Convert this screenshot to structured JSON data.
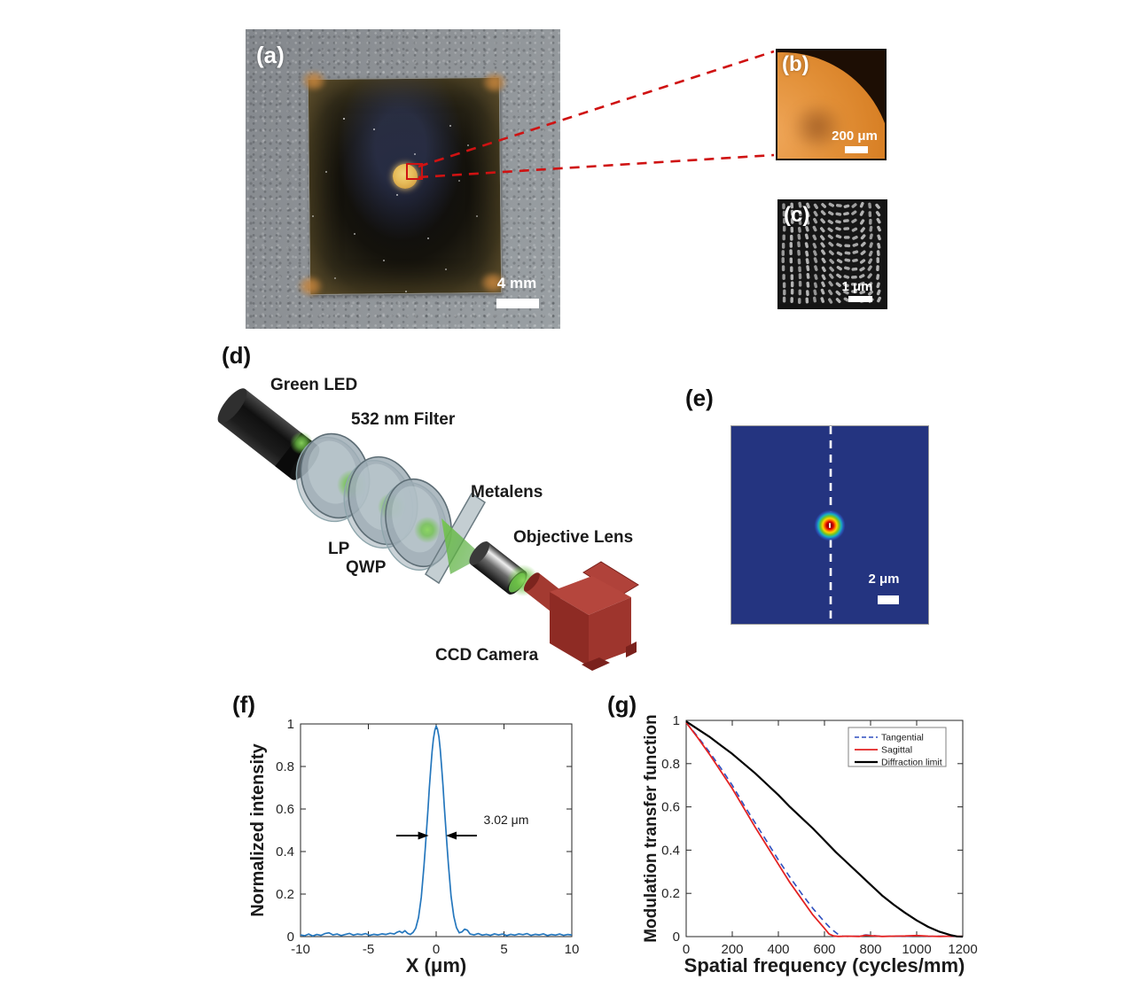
{
  "panels": {
    "a": {
      "label": "(a)",
      "scale_bar": "4 mm",
      "description": "photograph of metalens sample on gray fabric"
    },
    "b": {
      "label": "(b)",
      "scale_bar": "200 μm",
      "description": "optical micrograph of metalens edge"
    },
    "c": {
      "label": "(c)",
      "scale_bar": "1 μm",
      "description": "SEM image of nanofin array"
    },
    "d": {
      "label": "(d)",
      "labels": {
        "green_led": "Green LED",
        "filter": "532 nm Filter",
        "lp": "LP",
        "qwp": "QWP",
        "metalens": "Metalens",
        "objective_lens": "Objective Lens",
        "ccd_camera": "CCD Camera"
      }
    },
    "e": {
      "label": "(e)",
      "scale_bar": "2 μm",
      "description": "measured focal spot intensity map"
    },
    "f": {
      "label": "(f)"
    },
    "g": {
      "label": "(g)"
    }
  },
  "colors": {
    "connector_red": "#cf1212",
    "profile_blue": "#2577bd",
    "tangential_blue": "#2e4fbf",
    "sagittal_red": "#e32222",
    "diffraction_black": "#000000",
    "focal_background_navy": "#243480",
    "micrograph_orange": "#d67d22"
  },
  "chart_data": [
    {
      "id": "f",
      "type": "line",
      "title": "",
      "xlabel": "X (μm)",
      "ylabel": "Normalized intensity",
      "xlim": [
        -10,
        10
      ],
      "ylim": [
        0,
        1
      ],
      "xticks": [
        -10,
        -5,
        0,
        5,
        10
      ],
      "yticks": [
        0,
        0.2,
        0.4,
        0.6,
        0.8,
        1
      ],
      "grid": false,
      "annotation": {
        "text": "3.02 μm",
        "arrow_y": 0.475,
        "text_x": 3.5,
        "text_y": 0.53,
        "arrows": [
          {
            "from": -2.95,
            "to": -0.55
          },
          {
            "from": 3.0,
            "to": 0.72
          }
        ]
      },
      "series": [
        {
          "name": "intensity profile",
          "color": "#2577bd",
          "width": 1.7,
          "dash": null,
          "points": [
            [
              -10,
              0.008
            ],
            [
              -9.7,
              0.004
            ],
            [
              -9.4,
              0.012
            ],
            [
              -9.1,
              0.003
            ],
            [
              -8.8,
              0.01
            ],
            [
              -8.5,
              0.006
            ],
            [
              -8.2,
              0.014
            ],
            [
              -7.9,
              0.018
            ],
            [
              -7.6,
              0.008
            ],
            [
              -7.3,
              0.012
            ],
            [
              -7,
              0.005
            ],
            [
              -6.7,
              0.01
            ],
            [
              -6.4,
              0.015
            ],
            [
              -6.1,
              0.007
            ],
            [
              -5.8,
              0.012
            ],
            [
              -5.5,
              0.009
            ],
            [
              -5.2,
              0.014
            ],
            [
              -4.9,
              0.006
            ],
            [
              -4.6,
              0.011
            ],
            [
              -4.3,
              0.008
            ],
            [
              -4,
              0.013
            ],
            [
              -3.7,
              0.01
            ],
            [
              -3.4,
              0.016
            ],
            [
              -3.1,
              0.012
            ],
            [
              -2.9,
              0.02
            ],
            [
              -2.7,
              0.025
            ],
            [
              -2.5,
              0.018
            ],
            [
              -2.3,
              0.028
            ],
            [
              -2.1,
              0.015
            ],
            [
              -1.9,
              0.01
            ],
            [
              -1.7,
              0.02
            ],
            [
              -1.5,
              0.04
            ],
            [
              -1.3,
              0.09
            ],
            [
              -1.1,
              0.185
            ],
            [
              -0.9,
              0.33
            ],
            [
              -0.8,
              0.42
            ],
            [
              -0.7,
              0.51
            ],
            [
              -0.6,
              0.6
            ],
            [
              -0.5,
              0.7
            ],
            [
              -0.4,
              0.79
            ],
            [
              -0.3,
              0.87
            ],
            [
              -0.2,
              0.93
            ],
            [
              -0.1,
              0.97
            ],
            [
              0,
              0.99
            ],
            [
              0.1,
              0.975
            ],
            [
              0.2,
              0.94
            ],
            [
              0.3,
              0.88
            ],
            [
              0.4,
              0.8
            ],
            [
              0.5,
              0.71
            ],
            [
              0.6,
              0.61
            ],
            [
              0.7,
              0.52
            ],
            [
              0.8,
              0.43
            ],
            [
              0.9,
              0.34
            ],
            [
              1.1,
              0.19
            ],
            [
              1.3,
              0.095
            ],
            [
              1.5,
              0.042
            ],
            [
              1.7,
              0.018
            ],
            [
              1.9,
              0.022
            ],
            [
              2.1,
              0.035
            ],
            [
              2.3,
              0.03
            ],
            [
              2.5,
              0.012
            ],
            [
              2.8,
              0.008
            ],
            [
              3.1,
              0.014
            ],
            [
              3.4,
              0.007
            ],
            [
              3.7,
              0.011
            ],
            [
              4,
              0.006
            ],
            [
              4.3,
              0.013
            ],
            [
              4.6,
              0.008
            ],
            [
              4.9,
              0.012
            ],
            [
              5.2,
              0.005
            ],
            [
              5.5,
              0.011
            ],
            [
              5.8,
              0.007
            ],
            [
              6.1,
              0.013
            ],
            [
              6.4,
              0.009
            ],
            [
              6.7,
              0.014
            ],
            [
              7,
              0.006
            ],
            [
              7.3,
              0.011
            ],
            [
              7.6,
              0.008
            ],
            [
              7.9,
              0.013
            ],
            [
              8.2,
              0.005
            ],
            [
              8.5,
              0.01
            ],
            [
              8.8,
              0.007
            ],
            [
              9.1,
              0.012
            ],
            [
              9.4,
              0.006
            ],
            [
              9.7,
              0.01
            ],
            [
              10,
              0.008
            ]
          ]
        }
      ]
    },
    {
      "id": "g",
      "type": "line",
      "title": "",
      "xlabel": "Spatial frequency (cycles/mm)",
      "ylabel": "Modulation transfer function",
      "xlim": [
        0,
        1200
      ],
      "ylim": [
        0,
        1
      ],
      "xticks": [
        0,
        200,
        400,
        600,
        800,
        1000,
        1200
      ],
      "yticks": [
        0,
        0.2,
        0.4,
        0.6,
        0.8,
        1
      ],
      "grid": false,
      "legend": {
        "position": "top-right",
        "entries": [
          "Tangential",
          "Sagittal",
          "Diffraction limit"
        ]
      },
      "series": [
        {
          "name": "Tangential",
          "color": "#2e4fbf",
          "width": 1.6,
          "dash": "7,5",
          "points": [
            [
              0,
              0.99
            ],
            [
              50,
              0.925
            ],
            [
              100,
              0.855
            ],
            [
              150,
              0.78
            ],
            [
              200,
              0.7
            ],
            [
              250,
              0.61
            ],
            [
              300,
              0.525
            ],
            [
              350,
              0.44
            ],
            [
              400,
              0.355
            ],
            [
              450,
              0.275
            ],
            [
              500,
              0.2
            ],
            [
              550,
              0.13
            ],
            [
              600,
              0.068
            ],
            [
              630,
              0.035
            ],
            [
              660,
              0.01
            ],
            [
              680,
              0.002
            ],
            [
              700,
              0.001
            ],
            [
              750,
              0.002
            ],
            [
              780,
              0.008
            ],
            [
              800,
              0.006
            ],
            [
              850,
              0.001
            ],
            [
              900,
              0.002
            ],
            [
              950,
              0.001
            ],
            [
              1000,
              0.004
            ],
            [
              1050,
              0.001
            ],
            [
              1100,
              0.002
            ],
            [
              1150,
              0.001
            ],
            [
              1200,
              0.001
            ]
          ]
        },
        {
          "name": "Sagittal",
          "color": "#e32222",
          "width": 1.8,
          "dash": null,
          "points": [
            [
              0,
              0.99
            ],
            [
              50,
              0.92
            ],
            [
              100,
              0.845
            ],
            [
              150,
              0.765
            ],
            [
              200,
              0.685
            ],
            [
              250,
              0.595
            ],
            [
              300,
              0.505
            ],
            [
              350,
              0.42
            ],
            [
              400,
              0.335
            ],
            [
              450,
              0.25
            ],
            [
              500,
              0.175
            ],
            [
              550,
              0.1
            ],
            [
              600,
              0.038
            ],
            [
              620,
              0.012
            ],
            [
              640,
              0.003
            ],
            [
              660,
              0.001
            ],
            [
              700,
              0.002
            ],
            [
              750,
              0.001
            ],
            [
              780,
              0.006
            ],
            [
              800,
              0.004
            ],
            [
              850,
              0.001
            ],
            [
              900,
              0.002
            ],
            [
              950,
              0.003
            ],
            [
              1000,
              0.005
            ],
            [
              1050,
              0.002
            ],
            [
              1100,
              0.001
            ],
            [
              1150,
              0.002
            ],
            [
              1200,
              0.001
            ]
          ]
        },
        {
          "name": "Diffraction limit",
          "color": "#000000",
          "width": 2.2,
          "dash": null,
          "points": [
            [
              0,
              0.995
            ],
            [
              50,
              0.96
            ],
            [
              100,
              0.925
            ],
            [
              150,
              0.885
            ],
            [
              200,
              0.845
            ],
            [
              250,
              0.8
            ],
            [
              300,
              0.755
            ],
            [
              350,
              0.705
            ],
            [
              400,
              0.655
            ],
            [
              450,
              0.6
            ],
            [
              500,
              0.55
            ],
            [
              550,
              0.5
            ],
            [
              600,
              0.445
            ],
            [
              650,
              0.39
            ],
            [
              700,
              0.34
            ],
            [
              750,
              0.29
            ],
            [
              800,
              0.24
            ],
            [
              850,
              0.19
            ],
            [
              900,
              0.148
            ],
            [
              950,
              0.11
            ],
            [
              1000,
              0.075
            ],
            [
              1050,
              0.045
            ],
            [
              1100,
              0.022
            ],
            [
              1150,
              0.006
            ],
            [
              1175,
              0.001
            ],
            [
              1200,
              0
            ]
          ]
        }
      ]
    }
  ]
}
